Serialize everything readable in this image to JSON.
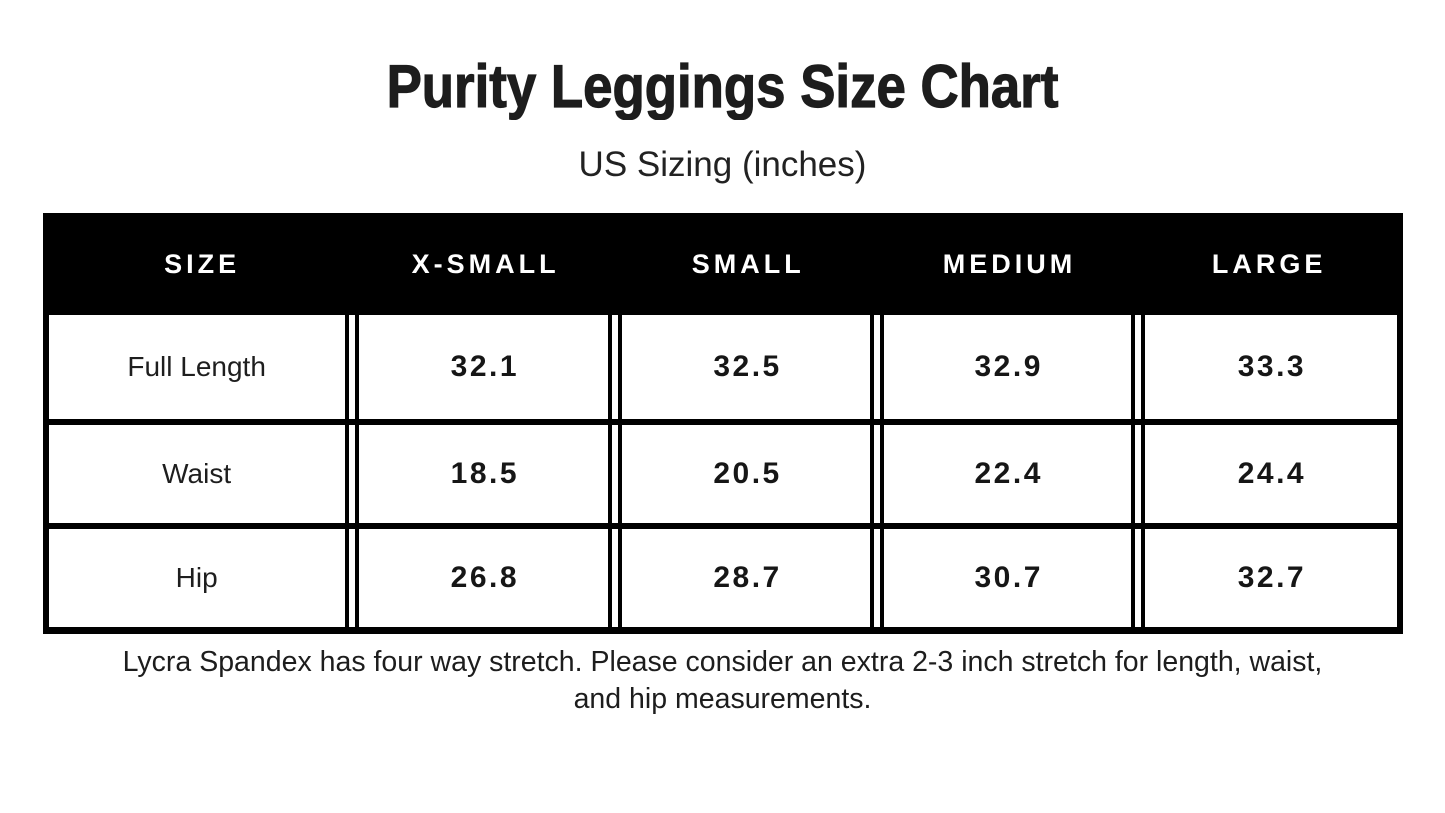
{
  "page": {
    "title": "Purity Leggings Size Chart",
    "subtitle": "US Sizing (inches)",
    "footnote_lines": [
      "Lycra Spandex has four way stretch. Please consider an extra 2-3 inch stretch for length, waist,",
      "and hip measurements."
    ]
  },
  "colors": {
    "page_bg": "#ffffff",
    "header_bg": "#000000",
    "header_text": "#ffffff",
    "table_border": "#000000",
    "text": "#1d1d1d"
  },
  "chart_data": {
    "type": "table",
    "title": "Purity Leggings Size Chart",
    "subtitle": "US Sizing (inches)",
    "units": "inches",
    "columns": [
      "SIZE",
      "X-SMALL",
      "SMALL",
      "MEDIUM",
      "LARGE"
    ],
    "rows": [
      {
        "label": "Full Length",
        "values": [
          "32.1",
          "32.5",
          "32.9",
          "33.3"
        ]
      },
      {
        "label": "Waist",
        "values": [
          "18.5",
          "20.5",
          "22.4",
          "24.4"
        ]
      },
      {
        "label": "Hip",
        "values": [
          "26.8",
          "28.7",
          "30.7",
          "32.7"
        ]
      }
    ],
    "note": "Lycra Spandex has four way stretch. Please consider an extra 2-3 inch stretch for length, waist, and hip measurements."
  }
}
